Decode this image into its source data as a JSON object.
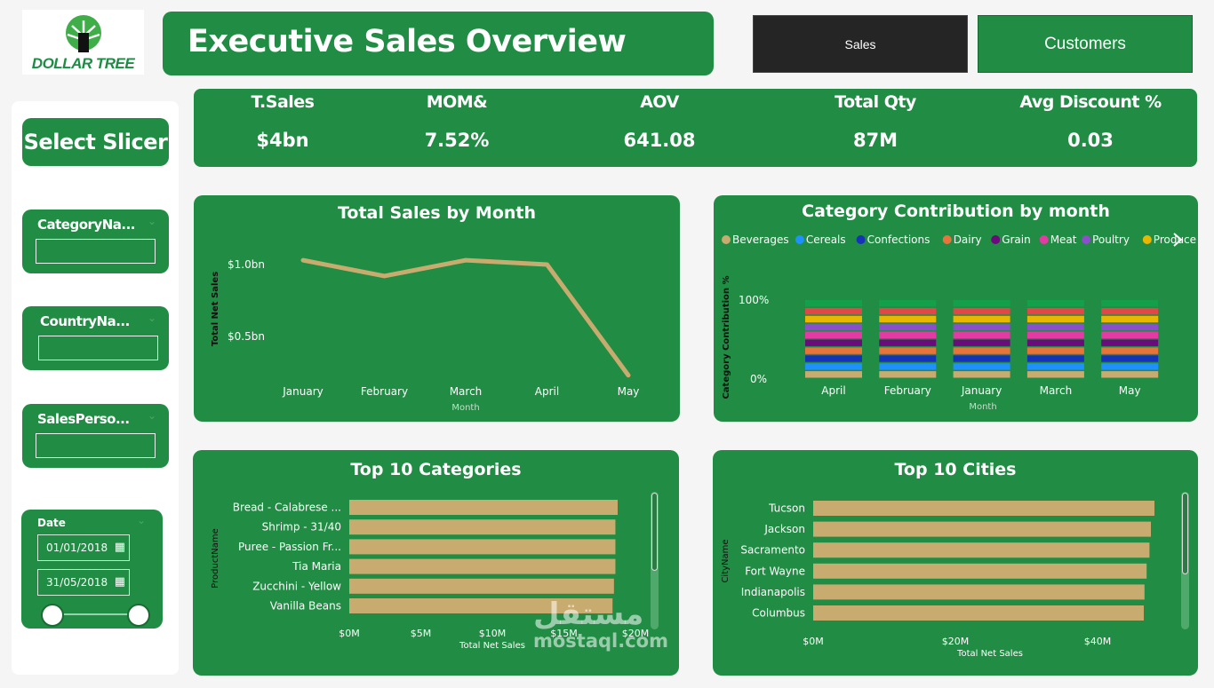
{
  "brand": {
    "logo_text": "DOLLAR TREE",
    "color": "#218c43"
  },
  "header": {
    "title": "Executive Sales Overview"
  },
  "nav": {
    "sales_label": "Sales",
    "customers_label": "Customers"
  },
  "kpis": [
    {
      "label": "T.Sales",
      "value": "$4bn"
    },
    {
      "label": "MOM&",
      "value": "7.52%"
    },
    {
      "label": "AOV",
      "value": "641.08"
    },
    {
      "label": "Total Qty",
      "value": "87M"
    },
    {
      "label": "Avg Discount %",
      "value": "0.03"
    }
  ],
  "sidebar": {
    "title": "Select Slicer",
    "filters": [
      {
        "label": "CategoryNa..."
      },
      {
        "label": "CountryNa..."
      },
      {
        "label": "SalesPerso..."
      }
    ],
    "date": {
      "label": "Date",
      "start": "01/01/2018",
      "end": "31/05/2018"
    }
  },
  "watermark": {
    "line1": "مستقل",
    "line2": "mostaql.com"
  },
  "chart_data": [
    {
      "type": "line",
      "title": "Total Sales by Month",
      "xlabel": "Month",
      "ylabel": "Total Net Sales",
      "categories": [
        "January",
        "February",
        "March",
        "April",
        "May"
      ],
      "values": [
        1.03,
        0.92,
        1.03,
        1.0,
        0.23
      ],
      "y_unit": "bn",
      "yticks": [
        "$0.5bn",
        "$1.0bn"
      ],
      "ytick_values": [
        0.5,
        1.0
      ],
      "ylim": [
        0,
        1.3
      ],
      "color": "#c8ab6e"
    },
    {
      "type": "bar",
      "stacked": true,
      "title": "Category Contribution by month",
      "xlabel": "Month",
      "ylabel": "Category Contribution %",
      "categories": [
        "April",
        "February",
        "January",
        "March",
        "May"
      ],
      "yticks": [
        "0%",
        "100%"
      ],
      "ylim": [
        0,
        100
      ],
      "series": [
        {
          "name": "Beverages",
          "color": "#c8ab6e",
          "values": [
            9,
            9,
            9,
            9,
            9
          ]
        },
        {
          "name": "Cereals",
          "color": "#1e90ff",
          "values": [
            9,
            9,
            9,
            9,
            9
          ]
        },
        {
          "name": "Confections",
          "color": "#1533b8",
          "values": [
            9,
            9,
            9,
            9,
            9
          ]
        },
        {
          "name": "Dairy",
          "color": "#e8743b",
          "values": [
            9,
            9,
            9,
            9,
            9
          ]
        },
        {
          "name": "Grain",
          "color": "#6b0a7a",
          "values": [
            9,
            9,
            9,
            9,
            9
          ]
        },
        {
          "name": "Meat",
          "color": "#e23ba3",
          "values": [
            9,
            9,
            9,
            9,
            9
          ]
        },
        {
          "name": "Poultry",
          "color": "#8a4fc9",
          "values": [
            9,
            9,
            9,
            9,
            9
          ]
        },
        {
          "name": "Produce",
          "color": "#e8b800",
          "values": [
            9,
            9,
            9,
            9,
            9
          ]
        },
        {
          "name": "",
          "color": "#e04848",
          "values": [
            9,
            9,
            9,
            9,
            9
          ]
        },
        {
          "name": "",
          "color": "#14a04a",
          "values": [
            9,
            9,
            9,
            9,
            9
          ]
        }
      ]
    },
    {
      "type": "bar",
      "orientation": "horizontal",
      "title": "Top 10 Categories",
      "xlabel": "Total Net Sales",
      "ylabel": "ProductName",
      "categories": [
        "Bread - Calabrese ...",
        "Shrimp - 31/40",
        "Puree - Passion Fr...",
        "Tia Maria",
        "Zucchini - Yellow",
        "Vanilla Beans"
      ],
      "values": [
        18.8,
        18.6,
        18.6,
        18.6,
        18.5,
        18.4
      ],
      "x_unit": "M",
      "xticks": [
        "$0M",
        "$5M",
        "$10M",
        "$15M",
        "$20M"
      ],
      "xlim": [
        0,
        20
      ],
      "color": "#c8ab6e"
    },
    {
      "type": "bar",
      "orientation": "horizontal",
      "title": "Top 10 Cities",
      "xlabel": "Total Net Sales",
      "ylabel": "CityName",
      "categories": [
        "Tucson",
        "Jackson",
        "Sacramento",
        "Fort Wayne",
        "Indianapolis",
        "Columbus"
      ],
      "values": [
        48.0,
        47.5,
        47.3,
        46.9,
        46.6,
        46.5
      ],
      "x_unit": "M",
      "xticks": [
        "$0M",
        "$20M",
        "$40M"
      ],
      "xlim": [
        0,
        40
      ],
      "color": "#c8ab6e"
    }
  ]
}
